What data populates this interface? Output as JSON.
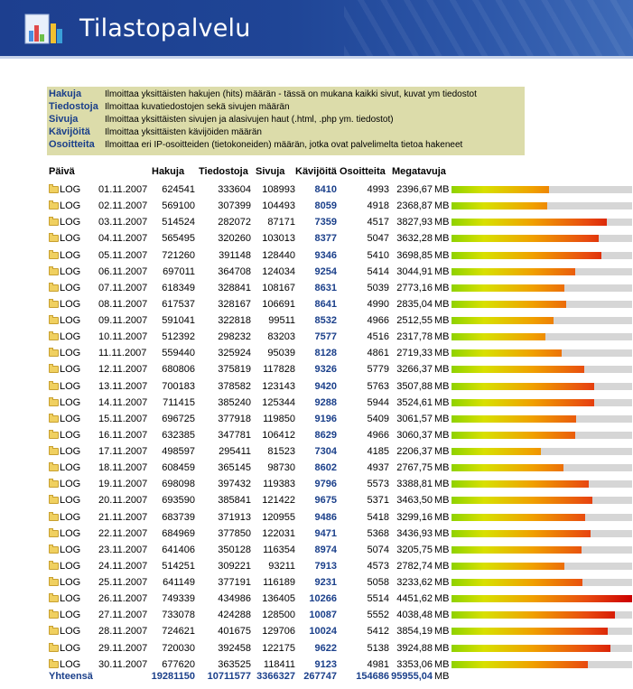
{
  "header": {
    "title": "Tilastopalvelu",
    "logo_icon": "chart-document-icon"
  },
  "legend": [
    {
      "term": "Hakuja",
      "desc": "Ilmoittaa yksittäisten hakujen (hits) määrän - tässä on mukana kaikki sivut, kuvat ym tiedostot"
    },
    {
      "term": "Tiedostoja",
      "desc": "Ilmoittaa kuvatiedostojen sekä sivujen määrän"
    },
    {
      "term": "Sivuja",
      "desc": "Ilmoittaa yksittäisten sivujen ja alasivujen haut (.html, .php ym. tiedostot)"
    },
    {
      "term": "Kävijöitä",
      "desc": "Ilmoittaa yksittäisten kävijöiden määrän"
    },
    {
      "term": "Osoitteita",
      "desc": "Ilmoittaa eri IP-osoitteiden (tietokoneiden) määrän, jotka ovat palvelimelta tietoa hakeneet"
    }
  ],
  "table": {
    "headers": {
      "day": "Päivä",
      "hits": "Hakuja",
      "files": "Tiedostoja",
      "pages": "Sivuja",
      "visitors": "Kävijöitä",
      "addresses": "Osoitteita",
      "mb": "Megatavuja"
    },
    "log_label": "LOG",
    "unit": "MB",
    "bar_max_mb": 4451.62,
    "rows": [
      {
        "date": "01.11.2007",
        "hits": "624541",
        "files": "333604",
        "pages": "108993",
        "visitors": "8410",
        "addresses": "4993",
        "mb": "2396,67",
        "mb_value": 2396.67
      },
      {
        "date": "02.11.2007",
        "hits": "569100",
        "files": "307399",
        "pages": "104493",
        "visitors": "8059",
        "addresses": "4918",
        "mb": "2368,87",
        "mb_value": 2368.87
      },
      {
        "date": "03.11.2007",
        "hits": "514524",
        "files": "282072",
        "pages": "87171",
        "visitors": "7359",
        "addresses": "4517",
        "mb": "3827,93",
        "mb_value": 3827.93
      },
      {
        "date": "04.11.2007",
        "hits": "565495",
        "files": "320260",
        "pages": "103013",
        "visitors": "8377",
        "addresses": "5047",
        "mb": "3632,28",
        "mb_value": 3632.28
      },
      {
        "date": "05.11.2007",
        "hits": "721260",
        "files": "391148",
        "pages": "128440",
        "visitors": "9346",
        "addresses": "5410",
        "mb": "3698,85",
        "mb_value": 3698.85
      },
      {
        "date": "06.11.2007",
        "hits": "697011",
        "files": "364708",
        "pages": "124034",
        "visitors": "9254",
        "addresses": "5414",
        "mb": "3044,91",
        "mb_value": 3044.91
      },
      {
        "date": "07.11.2007",
        "hits": "618349",
        "files": "328841",
        "pages": "108167",
        "visitors": "8631",
        "addresses": "5039",
        "mb": "2773,16",
        "mb_value": 2773.16
      },
      {
        "date": "08.11.2007",
        "hits": "617537",
        "files": "328167",
        "pages": "106691",
        "visitors": "8641",
        "addresses": "4990",
        "mb": "2835,04",
        "mb_value": 2835.04
      },
      {
        "date": "09.11.2007",
        "hits": "591041",
        "files": "322818",
        "pages": "99511",
        "visitors": "8532",
        "addresses": "4966",
        "mb": "2512,55",
        "mb_value": 2512.55
      },
      {
        "date": "10.11.2007",
        "hits": "512392",
        "files": "298232",
        "pages": "83203",
        "visitors": "7577",
        "addresses": "4516",
        "mb": "2317,78",
        "mb_value": 2317.78
      },
      {
        "date": "11.11.2007",
        "hits": "559440",
        "files": "325924",
        "pages": "95039",
        "visitors": "8128",
        "addresses": "4861",
        "mb": "2719,33",
        "mb_value": 2719.33
      },
      {
        "date": "12.11.2007",
        "hits": "680806",
        "files": "375819",
        "pages": "117828",
        "visitors": "9326",
        "addresses": "5779",
        "mb": "3266,37",
        "mb_value": 3266.37
      },
      {
        "date": "13.11.2007",
        "hits": "700183",
        "files": "378582",
        "pages": "123143",
        "visitors": "9420",
        "addresses": "5763",
        "mb": "3507,88",
        "mb_value": 3507.88
      },
      {
        "date": "14.11.2007",
        "hits": "711415",
        "files": "385240",
        "pages": "125344",
        "visitors": "9288",
        "addresses": "5944",
        "mb": "3524,61",
        "mb_value": 3524.61
      },
      {
        "date": "15.11.2007",
        "hits": "696725",
        "files": "377918",
        "pages": "119850",
        "visitors": "9196",
        "addresses": "5409",
        "mb": "3061,57",
        "mb_value": 3061.57
      },
      {
        "date": "16.11.2007",
        "hits": "632385",
        "files": "347781",
        "pages": "106412",
        "visitors": "8629",
        "addresses": "4966",
        "mb": "3060,37",
        "mb_value": 3060.37
      },
      {
        "date": "17.11.2007",
        "hits": "498597",
        "files": "295411",
        "pages": "81523",
        "visitors": "7304",
        "addresses": "4185",
        "mb": "2206,37",
        "mb_value": 2206.37
      },
      {
        "date": "18.11.2007",
        "hits": "608459",
        "files": "365145",
        "pages": "98730",
        "visitors": "8602",
        "addresses": "4937",
        "mb": "2767,75",
        "mb_value": 2767.75
      },
      {
        "date": "19.11.2007",
        "hits": "698098",
        "files": "397432",
        "pages": "119383",
        "visitors": "9796",
        "addresses": "5573",
        "mb": "3388,81",
        "mb_value": 3388.81
      },
      {
        "date": "20.11.2007",
        "hits": "693590",
        "files": "385841",
        "pages": "121422",
        "visitors": "9675",
        "addresses": "5371",
        "mb": "3463,50",
        "mb_value": 3463.5
      },
      {
        "date": "21.11.2007",
        "hits": "683739",
        "files": "371913",
        "pages": "120955",
        "visitors": "9486",
        "addresses": "5418",
        "mb": "3299,16",
        "mb_value": 3299.16
      },
      {
        "date": "22.11.2007",
        "hits": "684969",
        "files": "377850",
        "pages": "122031",
        "visitors": "9471",
        "addresses": "5368",
        "mb": "3436,93",
        "mb_value": 3436.93
      },
      {
        "date": "23.11.2007",
        "hits": "641406",
        "files": "350128",
        "pages": "116354",
        "visitors": "8974",
        "addresses": "5074",
        "mb": "3205,75",
        "mb_value": 3205.75
      },
      {
        "date": "24.11.2007",
        "hits": "514251",
        "files": "309221",
        "pages": "93211",
        "visitors": "7913",
        "addresses": "4573",
        "mb": "2782,74",
        "mb_value": 2782.74
      },
      {
        "date": "25.11.2007",
        "hits": "641149",
        "files": "377191",
        "pages": "116189",
        "visitors": "9231",
        "addresses": "5058",
        "mb": "3233,62",
        "mb_value": 3233.62
      },
      {
        "date": "26.11.2007",
        "hits": "749339",
        "files": "434986",
        "pages": "136405",
        "visitors": "10266",
        "addresses": "5514",
        "mb": "4451,62",
        "mb_value": 4451.62
      },
      {
        "date": "27.11.2007",
        "hits": "733078",
        "files": "424288",
        "pages": "128500",
        "visitors": "10087",
        "addresses": "5552",
        "mb": "4038,48",
        "mb_value": 4038.48
      },
      {
        "date": "28.11.2007",
        "hits": "724621",
        "files": "401675",
        "pages": "129706",
        "visitors": "10024",
        "addresses": "5412",
        "mb": "3854,19",
        "mb_value": 3854.19
      },
      {
        "date": "29.11.2007",
        "hits": "720030",
        "files": "392458",
        "pages": "122175",
        "visitors": "9622",
        "addresses": "5138",
        "mb": "3924,88",
        "mb_value": 3924.88
      },
      {
        "date": "30.11.2007",
        "hits": "677620",
        "files": "363525",
        "pages": "118411",
        "visitors": "9123",
        "addresses": "4981",
        "mb": "3353,06",
        "mb_value": 3353.06
      }
    ],
    "totals": {
      "label": "Yhteensä",
      "hits": "19281150",
      "files": "10711577",
      "pages": "3366327",
      "visitors": "267747",
      "addresses": "154686",
      "mb": "95955,04"
    }
  }
}
